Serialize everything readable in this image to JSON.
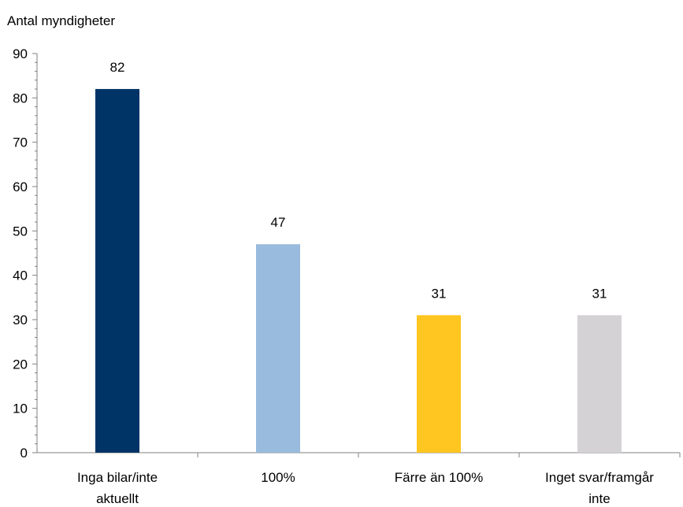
{
  "chart_data": {
    "type": "bar",
    "ylabel": "Antal myndigheter",
    "categories": [
      [
        "Inga bilar/inte",
        "aktuellt"
      ],
      [
        "100%"
      ],
      [
        "Färre än 100%"
      ],
      [
        "Inget svar/framgår",
        "inte"
      ]
    ],
    "values": [
      82,
      47,
      31,
      31
    ],
    "data_labels": [
      "82",
      "47",
      "31",
      "31"
    ],
    "colors": [
      "#003366",
      "#99BBDD",
      "#FFC520",
      "#D4D2D5"
    ],
    "ylim": [
      0,
      90
    ],
    "yticks": [
      0,
      10,
      20,
      30,
      40,
      50,
      60,
      70,
      80,
      90
    ],
    "grid": false,
    "legend": "none"
  }
}
